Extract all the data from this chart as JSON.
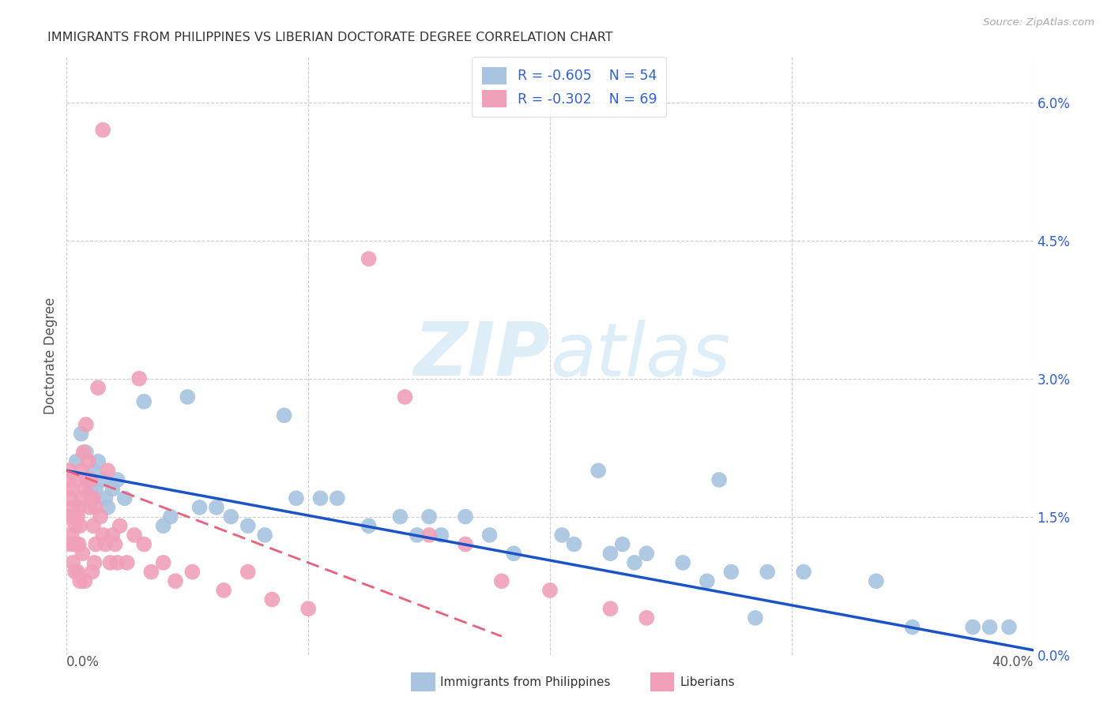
{
  "title": "IMMIGRANTS FROM PHILIPPINES VS LIBERIAN DOCTORATE DEGREE CORRELATION CHART",
  "source": "Source: ZipAtlas.com",
  "ylabel": "Doctorate Degree",
  "right_ytick_vals": [
    0.0,
    1.5,
    3.0,
    4.5,
    6.0
  ],
  "xlim": [
    0.0,
    40.0
  ],
  "ylim": [
    0.0,
    6.5
  ],
  "legend_blue_r": "R = -0.605",
  "legend_blue_n": "N = 54",
  "legend_pink_r": "R = -0.302",
  "legend_pink_n": "N = 69",
  "blue_color": "#a8c4e0",
  "pink_color": "#f0a0b8",
  "blue_line_color": "#1a52c8",
  "pink_line_color": "#e8607a",
  "legend_text_color": "#3060d0",
  "watermark_zip": "ZIP",
  "watermark_atlas": "atlas",
  "blue_line_x": [
    0.0,
    40.0
  ],
  "blue_line_y": [
    2.0,
    0.05
  ],
  "pink_line_x": [
    0.0,
    18.0
  ],
  "pink_line_y": [
    2.0,
    0.2
  ],
  "blue_scatter_x": [
    0.4,
    0.6,
    0.8,
    0.9,
    1.0,
    1.1,
    1.2,
    1.3,
    1.5,
    1.6,
    1.7,
    1.9,
    2.1,
    2.4,
    3.2,
    4.0,
    4.3,
    5.0,
    5.5,
    6.2,
    6.8,
    7.5,
    8.2,
    9.0,
    10.5,
    11.2,
    12.5,
    13.8,
    15.0,
    15.5,
    16.5,
    17.5,
    18.5,
    20.5,
    21.0,
    22.5,
    23.0,
    24.0,
    25.5,
    26.5,
    27.5,
    29.0,
    30.5,
    33.5,
    35.0,
    37.5,
    38.2,
    39.0,
    22.0,
    23.5,
    9.5,
    14.5,
    28.5,
    27.0
  ],
  "blue_scatter_y": [
    2.1,
    2.4,
    2.2,
    1.9,
    1.8,
    2.0,
    1.8,
    2.1,
    1.9,
    1.7,
    1.6,
    1.8,
    1.9,
    1.7,
    2.75,
    1.4,
    1.5,
    2.8,
    1.6,
    1.6,
    1.5,
    1.4,
    1.3,
    2.6,
    1.7,
    1.7,
    1.4,
    1.5,
    1.5,
    1.3,
    1.5,
    1.3,
    1.1,
    1.3,
    1.2,
    1.1,
    1.2,
    1.1,
    1.0,
    0.8,
    0.9,
    0.9,
    0.9,
    0.8,
    0.3,
    0.3,
    0.3,
    0.3,
    2.0,
    1.0,
    1.7,
    1.3,
    0.4,
    1.9
  ],
  "pink_scatter_x": [
    0.05,
    0.1,
    0.1,
    0.15,
    0.2,
    0.2,
    0.25,
    0.3,
    0.3,
    0.35,
    0.4,
    0.4,
    0.45,
    0.5,
    0.5,
    0.55,
    0.6,
    0.65,
    0.7,
    0.75,
    0.8,
    0.85,
    0.9,
    0.95,
    1.0,
    1.0,
    1.1,
    1.1,
    1.2,
    1.2,
    1.3,
    1.4,
    1.5,
    1.6,
    1.7,
    1.8,
    1.9,
    2.0,
    2.1,
    2.2,
    2.5,
    2.8,
    3.0,
    3.2,
    3.5,
    4.0,
    4.5,
    5.2,
    6.5,
    7.5,
    8.5,
    10.0,
    12.5,
    14.0,
    15.0,
    16.5,
    18.0,
    20.0,
    22.5,
    24.0,
    0.15,
    0.25,
    0.35,
    0.45,
    0.55,
    0.65,
    0.75,
    1.05,
    1.15
  ],
  "pink_scatter_y": [
    1.9,
    2.0,
    1.5,
    1.7,
    1.8,
    1.3,
    1.6,
    1.5,
    1.2,
    1.4,
    1.9,
    1.2,
    1.5,
    1.6,
    1.2,
    1.4,
    2.0,
    1.7,
    2.2,
    1.8,
    2.5,
    1.9,
    2.1,
    1.6,
    1.9,
    1.7,
    1.7,
    1.4,
    1.6,
    1.2,
    2.9,
    1.5,
    1.3,
    1.2,
    2.0,
    1.0,
    1.3,
    1.2,
    1.0,
    1.4,
    1.0,
    1.3,
    3.0,
    1.2,
    0.9,
    1.0,
    0.8,
    0.9,
    0.7,
    0.9,
    0.6,
    0.5,
    4.3,
    2.8,
    1.3,
    1.2,
    0.8,
    0.7,
    0.5,
    0.4,
    1.2,
    1.0,
    0.9,
    0.9,
    0.8,
    1.1,
    0.8,
    0.9,
    1.0
  ],
  "pink_outlier_x": [
    1.5
  ],
  "pink_outlier_y": [
    5.7
  ]
}
